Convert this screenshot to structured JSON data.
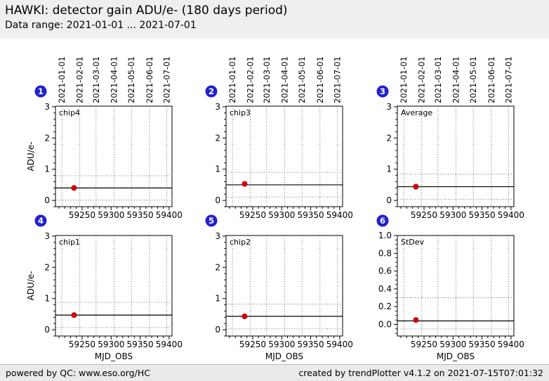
{
  "header": {
    "title": "HAWKI: detector gain ADU/e- (180 days period)",
    "subtitle": "Data range: 2021-01-01 ... 2021-07-01"
  },
  "footer": {
    "left": "powered by QC: www.eso.org/HC",
    "right": "created by trendPlotter v4.1.2 on 2021-07-15T07:01:32"
  },
  "colors": {
    "badge_blue": "#2121cd",
    "point_red": "#e00000",
    "point_red_edge": "#990000",
    "band_gray": "#efefef",
    "grid_dotted": "#3c3c3c"
  },
  "chart_data": {
    "type": "scatter",
    "title": "HAWKI: detector gain ADU/e- (180 days period)",
    "subtitle": "Data range: 2021-01-01 ... 2021-07-01",
    "layout": "2 rows x 3 columns of panels, dotted month gridlines, solid mean line, dotted threshold lines",
    "x_axis": {
      "label": "MJD_OBS",
      "xlim": [
        59204,
        59405
      ],
      "major_ticks": [
        59250,
        59300,
        59350,
        59400
      ],
      "minor_tick_step": 10,
      "date_gridlines": [
        {
          "mjd": 59215,
          "label": "2021-01-01"
        },
        {
          "mjd": 59246,
          "label": "2021-02-01"
        },
        {
          "mjd": 59274,
          "label": "2021-03-01"
        },
        {
          "mjd": 59305,
          "label": "2021-04-01"
        },
        {
          "mjd": 59335,
          "label": "2021-05-01"
        },
        {
          "mjd": 59366,
          "label": "2021-06-01"
        },
        {
          "mjd": 59396,
          "label": "2021-07-01"
        }
      ]
    },
    "panels": [
      {
        "badge": "1",
        "label": "chip4",
        "ylabel": "ADU/e-",
        "xlabel": "",
        "ylim": [
          -0.2,
          3.02
        ],
        "yticks": [
          0,
          1,
          2,
          3
        ],
        "ytick_labels": [
          "0",
          "1",
          "2",
          "3"
        ],
        "y_minor_step": 0.2,
        "points": {
          "x": [
            59236
          ],
          "y": [
            0.4
          ]
        },
        "mean_line_y": 0.4,
        "threshold_lines_y": [
          0.79,
          0.01
        ]
      },
      {
        "badge": "2",
        "label": "chip3",
        "ylabel": "",
        "xlabel": "",
        "ylim": [
          -0.2,
          3.02
        ],
        "yticks": [
          0,
          1,
          2,
          3
        ],
        "ytick_labels": [
          "0",
          "1",
          "2",
          "3"
        ],
        "y_minor_step": 0.2,
        "points": {
          "x": [
            59236
          ],
          "y": [
            0.53
          ]
        },
        "mean_line_y": 0.5,
        "threshold_lines_y": [
          0.9,
          0.11
        ]
      },
      {
        "badge": "3",
        "label": "Average",
        "ylabel": "",
        "xlabel": "",
        "ylim": [
          -0.2,
          3.02
        ],
        "yticks": [
          0,
          1,
          2,
          3
        ],
        "ytick_labels": [
          "0",
          "1",
          "2",
          "3"
        ],
        "y_minor_step": 0.2,
        "points": {
          "x": [
            59236
          ],
          "y": [
            0.44
          ]
        },
        "mean_line_y": 0.44,
        "threshold_lines_y": [
          0.84,
          0.04
        ]
      },
      {
        "badge": "4",
        "label": "chip1",
        "ylabel": "ADU/e-",
        "xlabel": "MJD_OBS",
        "ylim": [
          -0.2,
          3.02
        ],
        "yticks": [
          0,
          1,
          2,
          3
        ],
        "ytick_labels": [
          "0",
          "1",
          "2",
          "3"
        ],
        "y_minor_step": 0.2,
        "points": {
          "x": [
            59236
          ],
          "y": [
            0.47
          ]
        },
        "mean_line_y": 0.47,
        "threshold_lines_y": [
          0.88,
          0.07
        ]
      },
      {
        "badge": "5",
        "label": "chip2",
        "ylabel": "",
        "xlabel": "MJD_OBS",
        "ylim": [
          -0.2,
          3.02
        ],
        "yticks": [
          0,
          1,
          2,
          3
        ],
        "ytick_labels": [
          "0",
          "1",
          "2",
          "3"
        ],
        "y_minor_step": 0.2,
        "points": {
          "x": [
            59236
          ],
          "y": [
            0.43
          ]
        },
        "mean_line_y": 0.43,
        "threshold_lines_y": [
          0.82,
          0.03
        ]
      },
      {
        "badge": "6",
        "label": "StDev",
        "ylabel": "",
        "xlabel": "MJD_OBS",
        "ylim": [
          -0.13,
          1.0
        ],
        "yticks": [
          0,
          0.2,
          0.4,
          0.6,
          0.8,
          1.0
        ],
        "ytick_labels": [
          "0.0",
          "0.2",
          "0.4",
          "0.6",
          "0.8",
          "1.0"
        ],
        "y_minor_step": 0.05,
        "points": {
          "x": [
            59236
          ],
          "y": [
            0.05
          ]
        },
        "mean_line_y": 0.04,
        "threshold_lines_y": [
          0.3,
          -0.05
        ]
      }
    ]
  }
}
